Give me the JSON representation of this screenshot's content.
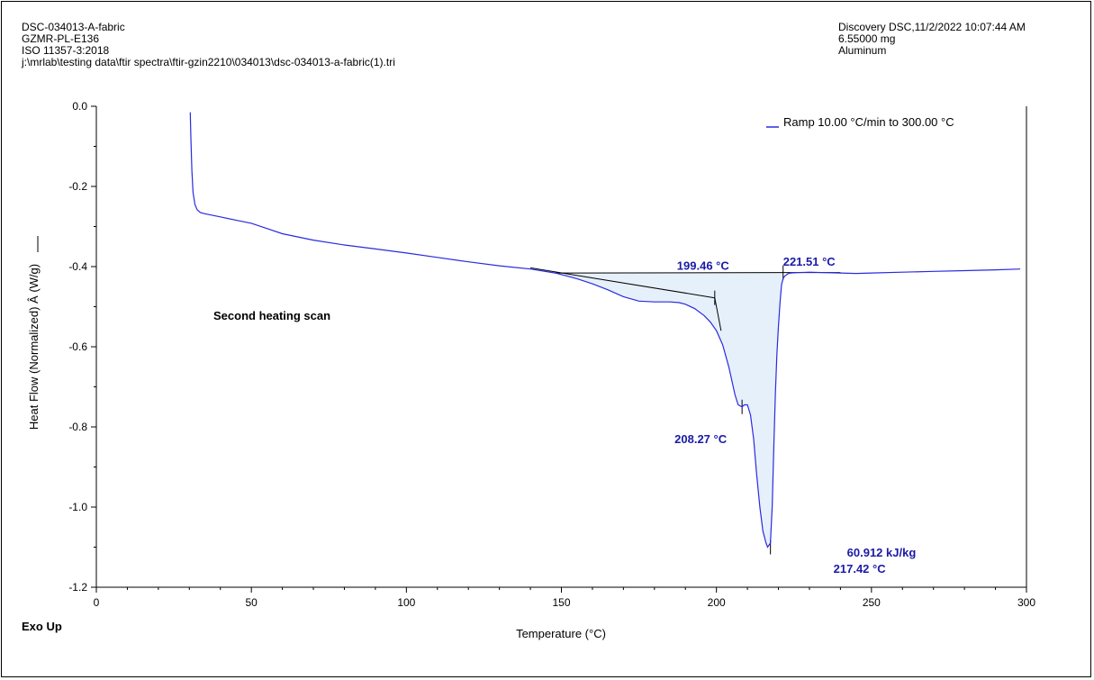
{
  "header": {
    "left_lines": [
      "DSC-034013-A-fabric",
      "GZMR-PL-E136",
      "ISO 11357-3:2018",
      "j:\\mrlab\\testing data\\ftir spectra\\ftir-gzin2210\\034013\\dsc-034013-a-fabric(1).tri"
    ],
    "right_lines": [
      "Discovery DSC,11/2/2022 10:07:44 AM",
      "6.55000 mg",
      "Aluminum"
    ]
  },
  "footer": {
    "exo_label": "Exo Up"
  },
  "colors": {
    "curve": "#2a2ae0",
    "annotation": "#1a1aa6",
    "fill": "#e6f0fb",
    "construction": "#000000"
  },
  "chart_data": {
    "type": "line",
    "xlabel": "Temperature     (°C)",
    "ylabel": "Heat Flow (Normalized)  Â  (W/g)",
    "xlim": [
      0,
      300
    ],
    "ylim": [
      -1.2,
      0.0
    ],
    "x_ticks": [
      0,
      50,
      100,
      150,
      200,
      250,
      300
    ],
    "x_tick_labels": [
      "0",
      "50",
      "100",
      "150",
      "200",
      "250",
      "300"
    ],
    "y_ticks": [
      0.0,
      -0.2,
      -0.4,
      -0.6,
      -0.8,
      -1.0,
      -1.2
    ],
    "y_tick_labels": [
      "0.0",
      "-0.2",
      "-0.4",
      "-0.6",
      "-0.8",
      "-1.0",
      "-1.2"
    ],
    "series": [
      {
        "name": "Ramp 10.00 °C/min to 300.00 °C",
        "x": [
          30.3,
          30.5,
          30.8,
          31.2,
          31.8,
          32.5,
          33.5,
          35,
          40,
          45,
          50,
          55,
          60,
          70,
          80,
          90,
          100,
          110,
          120,
          130,
          140,
          148,
          155,
          160,
          165,
          170,
          175,
          180,
          185,
          188,
          190,
          193,
          196,
          198,
          200,
          202,
          204,
          206,
          207,
          208.27,
          209,
          210,
          211,
          212,
          213,
          214,
          215,
          216,
          216.5,
          217.42,
          218,
          218.5,
          219,
          219.5,
          220,
          220.5,
          221,
          221.51,
          222,
          223,
          224,
          226,
          230,
          235,
          240,
          245,
          250,
          260,
          270,
          280,
          290,
          298
        ],
        "y": [
          -0.015,
          -0.08,
          -0.16,
          -0.215,
          -0.245,
          -0.258,
          -0.265,
          -0.268,
          -0.276,
          -0.284,
          -0.292,
          -0.305,
          -0.318,
          -0.334,
          -0.346,
          -0.356,
          -0.366,
          -0.377,
          -0.388,
          -0.398,
          -0.406,
          -0.416,
          -0.43,
          -0.443,
          -0.458,
          -0.475,
          -0.486,
          -0.488,
          -0.488,
          -0.49,
          -0.494,
          -0.505,
          -0.522,
          -0.538,
          -0.56,
          -0.595,
          -0.65,
          -0.72,
          -0.745,
          -0.75,
          -0.745,
          -0.745,
          -0.77,
          -0.83,
          -0.92,
          -1.0,
          -1.06,
          -1.09,
          -1.1,
          -1.09,
          -1.0,
          -0.85,
          -0.72,
          -0.62,
          -0.55,
          -0.49,
          -0.445,
          -0.43,
          -0.424,
          -0.418,
          -0.416,
          -0.415,
          -0.414,
          -0.415,
          -0.416,
          -0.417,
          -0.416,
          -0.414,
          -0.412,
          -0.41,
          -0.408,
          -0.406
        ]
      }
    ],
    "baseline": {
      "x": [
        148,
        221.51,
        240
      ],
      "y": [
        -0.416,
        -0.415,
        -0.415
      ]
    },
    "onset_tangent": {
      "x": [
        140,
        199.46
      ],
      "y": [
        -0.403,
        -0.478
      ]
    },
    "markers": [
      {
        "x": 199.46,
        "y": -0.478
      },
      {
        "x": 208.27,
        "y": -0.75
      },
      {
        "x": 217.42,
        "y": -1.1
      },
      {
        "x": 221.51,
        "y": -0.415
      }
    ],
    "annotations": [
      {
        "text": "199.46 °C",
        "x": 199.46,
        "y": -0.39
      },
      {
        "text": "221.51 °C",
        "x": 221.51,
        "y": -0.38
      },
      {
        "text": "208.27 °C",
        "x": 208.27,
        "y": -0.84
      },
      {
        "text": "60.912 kJ/kg",
        "x": 217.42,
        "y": -1.11
      },
      {
        "text": "217.42 °C",
        "x": 217.42,
        "y": -1.15
      }
    ],
    "plot_text": "Second heating scan",
    "legend": "top-right"
  }
}
